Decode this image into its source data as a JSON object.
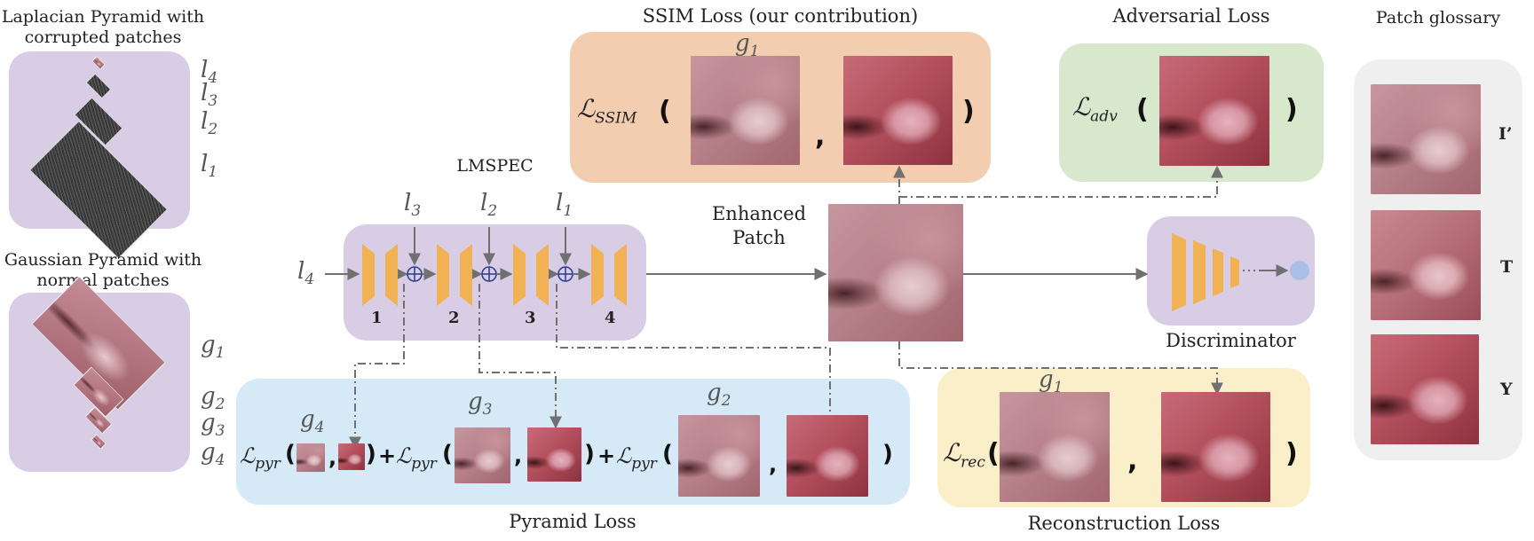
{
  "titles": {
    "laplacian": "Laplacian Pyramid with corrupted patches",
    "gaussian": "Gaussian Pyramid with normal patches",
    "lmspec": "LMSPEC",
    "ssim": "SSIM Loss (our contribution)",
    "adversarial": "Adversarial Loss",
    "glossary": "Patch glossary",
    "enhanced": "Enhanced Patch",
    "discriminator": "Discriminator",
    "pyramid_loss": "Pyramid Loss",
    "reconstruction_loss": "Reconstruction Loss"
  },
  "laplacian_levels": [
    "l",
    "l",
    "l",
    "l"
  ],
  "laplacian_subs": [
    "4",
    "3",
    "2",
    "1"
  ],
  "gaussian_levels": [
    "g",
    "g",
    "g",
    "g"
  ],
  "gaussian_subs": [
    "1",
    "2",
    "3",
    "4"
  ],
  "lmspec_blocks": [
    "1",
    "2",
    "3",
    "4"
  ],
  "inputs": {
    "l4": {
      "base": "l",
      "sub": "4"
    },
    "l3": {
      "base": "l",
      "sub": "3"
    },
    "l2": {
      "base": "l",
      "sub": "2"
    },
    "l1": {
      "base": "l",
      "sub": "1"
    }
  },
  "losses": {
    "ssim": {
      "base": "ℒ",
      "sub": "SSIM"
    },
    "adv": {
      "base": "ℒ",
      "sub": "adv"
    },
    "pyr": {
      "base": "ℒ",
      "sub": "pyr"
    },
    "rec": {
      "base": "ℒ",
      "sub": "rec"
    }
  },
  "gauss_refs": {
    "g1": {
      "base": "g",
      "sub": "1"
    },
    "g2": {
      "base": "g",
      "sub": "2"
    },
    "g3": {
      "base": "g",
      "sub": "3"
    },
    "g4": {
      "base": "g",
      "sub": "4"
    }
  },
  "symbols": {
    "open": "(",
    "close": ")",
    "comma": ",",
    "plus": "+"
  },
  "glossary": [
    "I’",
    "T",
    "Y"
  ],
  "colors": {
    "purple": "#d9cde6",
    "peach": "#f3cdb0",
    "green": "#d7e8cd",
    "blue": "#d6e9f7",
    "yellow": "#fbefc9",
    "grey": "#efefef",
    "encoder": "#f0b254",
    "node": "#a9bfe8",
    "arrow": "#707070"
  }
}
